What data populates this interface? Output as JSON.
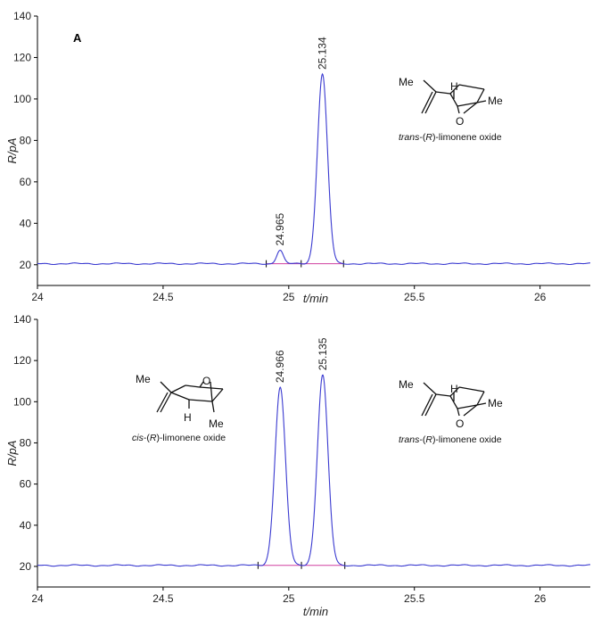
{
  "chart_data": [
    {
      "type": "line",
      "panel_label": "A",
      "xlabel": "t/min",
      "ylabel": "R/pA",
      "xlim": [
        24,
        26.2
      ],
      "ylim": [
        10,
        140
      ],
      "x_ticks": [
        24,
        24.5,
        25,
        25.5,
        26
      ],
      "x_tick_labels": [
        "24",
        "24.5",
        "25",
        "25.5",
        "26"
      ],
      "y_ticks": [
        20,
        40,
        60,
        80,
        100,
        120,
        140
      ],
      "y_tick_labels": [
        "20",
        "40",
        "60",
        "80",
        "100",
        "120",
        "140"
      ],
      "baseline": 20.5,
      "series": [
        {
          "color": "#3a3ad0",
          "peaks": [
            {
              "label": "24.965",
              "rt": 24.965,
              "height": 27.0,
              "sigma": 0.013
            },
            {
              "label": "25.134",
              "rt": 25.134,
              "height": 112.0,
              "sigma": 0.02
            }
          ]
        }
      ],
      "integration_color": "#d040a0",
      "structures": [
        {
          "name": "trans-(R)-limonene oxide",
          "caption_italic": "trans",
          "caption_rest1": "-(",
          "caption_R": "R",
          "caption_rest2": ")-limonene oxide",
          "me_top": "Me",
          "h": "H",
          "o": "O",
          "me_right": "Me"
        }
      ]
    },
    {
      "type": "line",
      "xlabel": "t/min",
      "ylabel": "R/pA",
      "xlim": [
        24,
        26.2
      ],
      "ylim": [
        10,
        140
      ],
      "x_ticks": [
        24,
        24.5,
        25,
        25.5,
        26
      ],
      "x_tick_labels": [
        "24",
        "24.5",
        "25",
        "25.5",
        "26"
      ],
      "y_ticks": [
        20,
        40,
        60,
        80,
        100,
        120,
        140
      ],
      "y_tick_labels": [
        "20",
        "40",
        "60",
        "80",
        "100",
        "120",
        "140"
      ],
      "baseline": 20.5,
      "series": [
        {
          "color": "#3a3ad0",
          "peaks": [
            {
              "label": "24.966",
              "rt": 24.966,
              "height": 107.0,
              "sigma": 0.021
            },
            {
              "label": "25.135",
              "rt": 25.135,
              "height": 113.0,
              "sigma": 0.021
            }
          ]
        }
      ],
      "integration_color": "#d040a0",
      "structures": [
        {
          "name": "cis-(R)-limonene oxide",
          "caption_italic": "cis",
          "caption_rest1": "-(",
          "caption_R": "R",
          "caption_rest2": ")-limonene oxide",
          "me_top": "Me",
          "h": "H",
          "o": "O",
          "me_right": "Me"
        },
        {
          "name": "trans-(R)-limonene oxide",
          "caption_italic": "trans",
          "caption_rest1": "-(",
          "caption_R": "R",
          "caption_rest2": ")-limonene oxide",
          "me_top": "Me",
          "h": "H",
          "o": "O",
          "me_right": "Me"
        }
      ]
    }
  ]
}
